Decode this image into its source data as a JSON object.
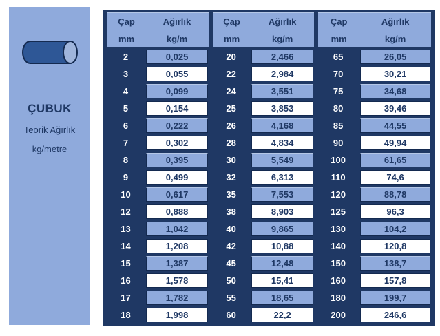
{
  "page": {
    "background": "#ffffff"
  },
  "panel": {
    "bg": "#8FAADC",
    "title": "ÇUBUK",
    "subtitle_line1": "Teorik Ağırlık",
    "subtitle_line2": "kg/metre",
    "icon": "rod-cylinder-icon"
  },
  "colors": {
    "navy": "#1F3864",
    "light_blue": "#8FAADC",
    "highlight_border": "#B4C7E7",
    "rod_body": "#2E5796",
    "rod_cap": "#9FB5DC",
    "row_even": "#8FAADC",
    "row_odd": "#FFFFFF"
  },
  "table": {
    "bg": "#1F3864",
    "header": {
      "diameter_label": "Çap",
      "diameter_unit": "mm",
      "weight_label": "Ağırlık",
      "weight_unit": "kg/m"
    },
    "groups": [
      {
        "rows": [
          {
            "d": "2",
            "w": "0,025"
          },
          {
            "d": "3",
            "w": "0,055"
          },
          {
            "d": "4",
            "w": "0,099"
          },
          {
            "d": "5",
            "w": "0,154"
          },
          {
            "d": "6",
            "w": "0,222"
          },
          {
            "d": "7",
            "w": "0,302"
          },
          {
            "d": "8",
            "w": "0,395"
          },
          {
            "d": "9",
            "w": "0,499"
          },
          {
            "d": "10",
            "w": "0,617"
          },
          {
            "d": "12",
            "w": "0,888"
          },
          {
            "d": "13",
            "w": "1,042"
          },
          {
            "d": "14",
            "w": "1,208"
          },
          {
            "d": "15",
            "w": "1,387"
          },
          {
            "d": "16",
            "w": "1,578"
          },
          {
            "d": "17",
            "w": "1,782"
          },
          {
            "d": "18",
            "w": "1,998"
          }
        ]
      },
      {
        "rows": [
          {
            "d": "20",
            "w": "2,466"
          },
          {
            "d": "22",
            "w": "2,984"
          },
          {
            "d": "24",
            "w": "3,551"
          },
          {
            "d": "25",
            "w": "3,853"
          },
          {
            "d": "26",
            "w": "4,168"
          },
          {
            "d": "28",
            "w": "4,834"
          },
          {
            "d": "30",
            "w": "5,549"
          },
          {
            "d": "32",
            "w": "6,313"
          },
          {
            "d": "35",
            "w": "7,553"
          },
          {
            "d": "38",
            "w": "8,903"
          },
          {
            "d": "40",
            "w": "9,865"
          },
          {
            "d": "42",
            "w": "10,88"
          },
          {
            "d": "45",
            "w": "12,48"
          },
          {
            "d": "50",
            "w": "15,41"
          },
          {
            "d": "55",
            "w": "18,65"
          },
          {
            "d": "60",
            "w": "22,2"
          }
        ]
      },
      {
        "rows": [
          {
            "d": "65",
            "w": "26,05"
          },
          {
            "d": "70",
            "w": "30,21"
          },
          {
            "d": "75",
            "w": "34,68"
          },
          {
            "d": "80",
            "w": "39,46"
          },
          {
            "d": "85",
            "w": "44,55"
          },
          {
            "d": "90",
            "w": "49,94"
          },
          {
            "d": "100",
            "w": "61,65"
          },
          {
            "d": "110",
            "w": "74,6"
          },
          {
            "d": "120",
            "w": "88,78"
          },
          {
            "d": "125",
            "w": "96,3"
          },
          {
            "d": "130",
            "w": "104,2"
          },
          {
            "d": "140",
            "w": "120,8"
          },
          {
            "d": "150",
            "w": "138,7"
          },
          {
            "d": "160",
            "w": "157,8"
          },
          {
            "d": "180",
            "w": "199,7"
          },
          {
            "d": "200",
            "w": "246,6"
          }
        ]
      }
    ]
  }
}
